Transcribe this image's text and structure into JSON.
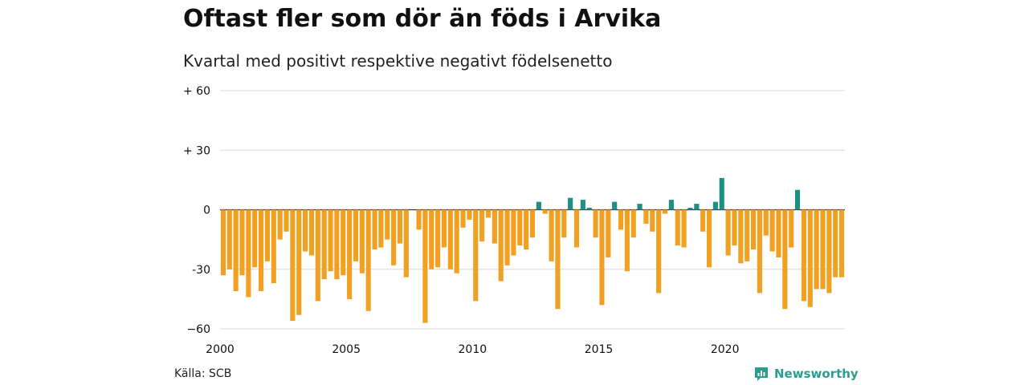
{
  "header": {
    "title": "Oftast fler som dör än föds i Arvika",
    "subtitle": "Kvartal med positivt respektive negativt födelsenetto"
  },
  "footer": {
    "source": "Källa: SCB",
    "brand": "Newsworthy"
  },
  "colors": {
    "positive": "#1f8f83",
    "negative": "#f2a021",
    "grid": "#d9d9d9",
    "brand": "#2a9d8f"
  },
  "chart_data": {
    "type": "bar",
    "title": "Oftast fler som dör än föds i Arvika",
    "subtitle": "Kvartal med positivt respektive negativt födelsenetto",
    "xlabel": "",
    "ylabel": "",
    "ylim": [
      -60,
      60
    ],
    "xlim": [
      2000,
      2024.75
    ],
    "yticks": [
      {
        "value": 60,
        "label": "+ 60"
      },
      {
        "value": 30,
        "label": "+ 30"
      },
      {
        "value": 0,
        "label": "0"
      },
      {
        "value": -30,
        "label": "-30"
      },
      {
        "value": -60,
        "label": "−60"
      }
    ],
    "xticks": [
      {
        "value": 2000,
        "label": "2000"
      },
      {
        "value": 2005,
        "label": "2005"
      },
      {
        "value": 2010,
        "label": "2010"
      },
      {
        "value": 2015,
        "label": "2015"
      },
      {
        "value": 2020,
        "label": "2020"
      }
    ],
    "grid": true,
    "legend": "none",
    "start_quarter": "2000 Q1",
    "values": [
      -33,
      -30,
      -41,
      -33,
      -44,
      -29,
      -41,
      -26,
      -37,
      -15,
      -11,
      -56,
      -53,
      -21,
      -23,
      -46,
      -35,
      -31,
      -35,
      -33,
      -45,
      -26,
      -32,
      -51,
      -20,
      -19,
      -15,
      -28,
      -17,
      -34,
      0,
      -10,
      -57,
      -30,
      -29,
      -19,
      -30,
      -32,
      -9,
      -5,
      -46,
      -16,
      -4,
      -17,
      -36,
      -28,
      -23,
      -18,
      -20,
      -14,
      4,
      -2,
      -26,
      -50,
      -14,
      6,
      -19,
      5,
      1,
      -14,
      -48,
      -24,
      4,
      -10,
      -31,
      -14,
      3,
      -7,
      -11,
      -42,
      -2,
      5,
      -18,
      -19,
      1,
      3,
      -11,
      -29,
      4,
      16,
      -23,
      -18,
      -27,
      -26,
      -20,
      -42,
      -13,
      -21,
      -24,
      -50,
      -19,
      10,
      -46,
      -49,
      -40,
      -40,
      -42,
      -34,
      -34
    ]
  }
}
